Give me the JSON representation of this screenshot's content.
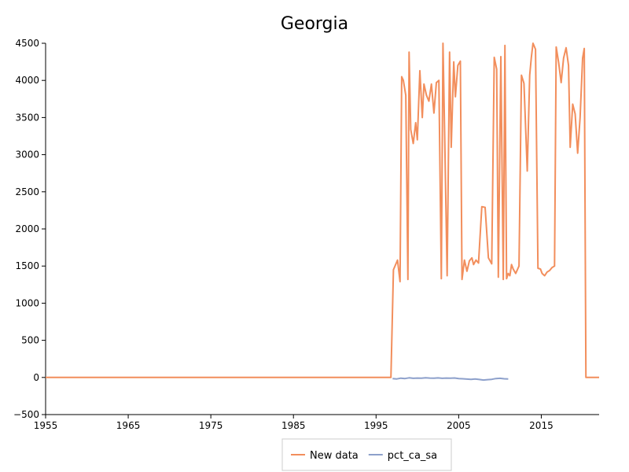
{
  "chart_data": {
    "type": "line",
    "title": "Georgia",
    "xlabel": "",
    "ylabel": "",
    "xlim": [
      1955,
      2022
    ],
    "ylim": [
      -500,
      4500
    ],
    "x_ticks": [
      1955,
      1965,
      1975,
      1985,
      1995,
      2005,
      2015
    ],
    "y_ticks": [
      -500,
      0,
      500,
      1000,
      1500,
      2000,
      2500,
      3000,
      3500,
      4000,
      4500
    ],
    "grid": false,
    "legend_position": "bottom",
    "series": [
      {
        "name": "New data",
        "color": "#f28e5c",
        "x": [
          1955,
          1996.8,
          1997.1,
          1997.6,
          1997.9,
          1998.1,
          1998.3,
          1998.6,
          1998.85,
          1999.0,
          1999.2,
          1999.5,
          1999.8,
          2000.0,
          2000.3,
          2000.6,
          2000.8,
          2001.1,
          2001.4,
          2001.7,
          2002.0,
          2002.3,
          2002.6,
          2002.9,
          2003.1,
          2003.3,
          2003.6,
          2003.9,
          2004.1,
          2004.4,
          2004.6,
          2004.9,
          2005.2,
          2005.4,
          2005.7,
          2006.0,
          2006.3,
          2006.6,
          2006.8,
          2007.1,
          2007.4,
          2007.8,
          2008.2,
          2008.6,
          2009.0,
          2009.3,
          2009.6,
          2009.8,
          2010.1,
          2010.4,
          2010.6,
          2010.8,
          2011.0,
          2011.2,
          2011.4,
          2011.6,
          2011.9,
          2012.3,
          2012.6,
          2012.9,
          2013.3,
          2013.6,
          2013.8,
          2014.0,
          2014.3,
          2014.6,
          2014.9,
          2015.1,
          2015.4,
          2015.7,
          2016.0,
          2016.3,
          2016.6,
          2016.8,
          2017.1,
          2017.4,
          2017.7,
          2018.0,
          2018.3,
          2018.5,
          2018.8,
          2019.1,
          2019.4,
          2019.7,
          2020.0,
          2020.2,
          2020.4,
          2021.0,
          2022
        ],
        "y": [
          0,
          0,
          1450,
          1580,
          1290,
          4050,
          4000,
          3800,
          1320,
          4380,
          3340,
          3150,
          3430,
          3200,
          4130,
          3500,
          3950,
          3800,
          3720,
          3950,
          3560,
          3970,
          4000,
          1330,
          4500,
          3300,
          1370,
          4380,
          3100,
          4250,
          3780,
          4200,
          4260,
          1320,
          1580,
          1430,
          1570,
          1610,
          1520,
          1580,
          1540,
          2300,
          2290,
          1610,
          1530,
          4310,
          4150,
          1350,
          4320,
          1320,
          4470,
          1330,
          1400,
          1370,
          1520,
          1460,
          1400,
          1500,
          4070,
          3960,
          2780,
          4070,
          4310,
          4500,
          4420,
          1470,
          1460,
          1400,
          1370,
          1420,
          1440,
          1480,
          1500,
          4450,
          4240,
          3970,
          4300,
          4440,
          4200,
          3100,
          3680,
          3550,
          3020,
          3500,
          4300,
          4430,
          0,
          0,
          0
        ]
      },
      {
        "name": "pct_ca_sa",
        "color": "#8da0cb",
        "x": [
          1997,
          1997.5,
          1998,
          1998.5,
          1999,
          1999.5,
          2000,
          2000.5,
          2001,
          2001.5,
          2002,
          2002.5,
          2003,
          2003.5,
          2004,
          2004.5,
          2005,
          2005.5,
          2006,
          2006.5,
          2007,
          2007.5,
          2008,
          2008.5,
          2009,
          2009.5,
          2010,
          2010.5,
          2011
        ],
        "y": [
          -15,
          -20,
          -10,
          -15,
          -5,
          -12,
          -8,
          -10,
          -5,
          -8,
          -10,
          -6,
          -12,
          -8,
          -10,
          -7,
          -15,
          -18,
          -22,
          -25,
          -20,
          -28,
          -35,
          -30,
          -25,
          -15,
          -12,
          -18,
          -20
        ]
      }
    ]
  }
}
